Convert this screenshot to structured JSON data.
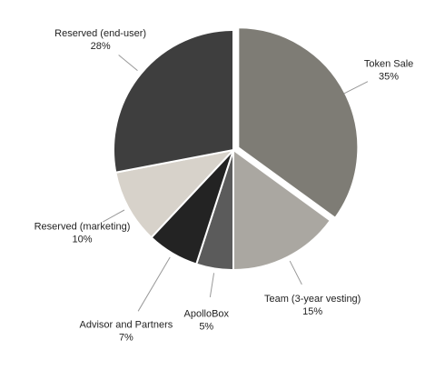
{
  "chart_data": {
    "type": "pie",
    "categories": [
      "Token Sale",
      "Team (3-year vesting)",
      "ApolloBox",
      "Advisor and Partners",
      "Reserved (marketing)",
      "Reserved (end-user)"
    ],
    "values": [
      35,
      15,
      5,
      7,
      10,
      28
    ],
    "value_labels": [
      "35%",
      "15%",
      "5%",
      "7%",
      "10%",
      "28%"
    ],
    "colors": [
      "#7e7c75",
      "#aaa7a1",
      "#5b5b5b",
      "#232323",
      "#d7d2ca",
      "#3e3e3e"
    ],
    "exploded": [
      0
    ]
  }
}
